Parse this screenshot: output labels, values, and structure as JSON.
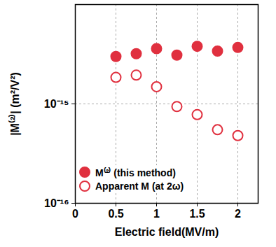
{
  "chart_data": {
    "type": "scatter",
    "x_label": "Electric field(MV/m)",
    "y_label": "|M⁽²⁾| (m²/V²)",
    "x": [
      0.5,
      0.75,
      1,
      1.25,
      1.5,
      1.75,
      2
    ],
    "series": [
      {
        "name": "M⁽²⁾ (this method)",
        "color": "#e0303f",
        "marker": "filled",
        "values": [
          3e-15,
          3.2e-15,
          3.6e-15,
          3.1e-15,
          3.8e-15,
          3.4e-15,
          3.7e-15
        ]
      },
      {
        "name": "Apparent M (at 2ω)",
        "color": "#e0303f",
        "marker": "open",
        "values": [
          1.85e-15,
          1.95e-15,
          1.49e-15,
          9.4e-16,
          7.8e-16,
          5.5e-16,
          4.8e-16
        ]
      }
    ],
    "xlim": [
      0,
      2.25
    ],
    "xticks": [
      0,
      0.5,
      1,
      1.5,
      2
    ],
    "ylim": [
      1e-16,
      1e-14
    ],
    "yticks": [
      {
        "value": 1e-16,
        "label": "10⁻¹⁶"
      },
      {
        "value": 1e-15,
        "label": "10⁻¹⁵"
      }
    ],
    "log": "y",
    "grid": true,
    "legend": "lower left"
  }
}
